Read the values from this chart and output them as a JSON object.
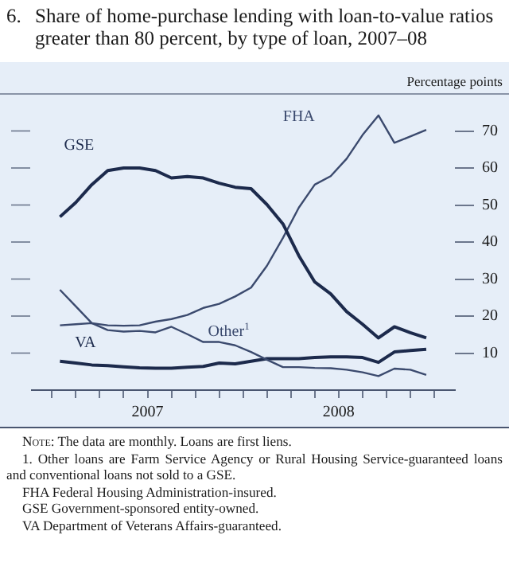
{
  "chart_data": {
    "type": "line",
    "title": "6.\tShare of home-purchase lending with loan-to-value ratios greater than 80 percent, by type of loan, 2007–08",
    "ylabel": "Percentage points",
    "x": [
      "2007-01",
      "2007-02",
      "2007-03",
      "2007-04",
      "2007-05",
      "2007-06",
      "2007-07",
      "2007-08",
      "2007-09",
      "2007-10",
      "2007-11",
      "2007-12",
      "2008-01",
      "2008-02",
      "2008-03",
      "2008-04",
      "2008-05",
      "2008-06",
      "2008-07",
      "2008-08",
      "2008-09",
      "2008-10",
      "2008-11",
      "2008-12"
    ],
    "series": [
      {
        "name": "GSE",
        "color": "#1c2a4c",
        "values": [
          46.8,
          50.7,
          55.5,
          59.3,
          60,
          60,
          59.3,
          57.3,
          57.7,
          57.3,
          55.9,
          54.8,
          54.4,
          50.1,
          44.9,
          36.3,
          29.2,
          26,
          21.2,
          17.8,
          14.1,
          17.1,
          15.5,
          14.1
        ]
      },
      {
        "name": "FHA",
        "color": "#3b4a6e",
        "values": [
          17.5,
          17.8,
          18.1,
          17.5,
          17.4,
          17.5,
          18.5,
          19.2,
          20.3,
          22.2,
          23.3,
          25.3,
          27.7,
          33.6,
          41.1,
          49.3,
          55.5,
          57.8,
          62.5,
          68.9,
          74.2,
          66.8,
          68.5,
          70.3
        ]
      },
      {
        "name": "Other$^{1}$",
        "color": "#3b4a6e",
        "values": [
          27.1,
          22.6,
          18.1,
          16.2,
          15.8,
          16,
          15.6,
          17.1,
          15.1,
          13,
          13,
          12.1,
          10.3,
          8.2,
          6.2,
          6.2,
          6,
          5.9,
          5.5,
          4.8,
          3.8,
          5.8,
          5.5,
          4.1
        ]
      },
      {
        "name": "VA",
        "color": "#1c2a4c",
        "values": [
          7.8,
          7.3,
          6.8,
          6.6,
          6.3,
          6,
          5.9,
          5.9,
          6.2,
          6.4,
          7.3,
          7.1,
          7.8,
          8.5,
          8.5,
          8.5,
          8.8,
          9,
          9,
          8.8,
          7.5,
          10.3,
          10.7,
          11
        ]
      }
    ],
    "xlim": [
      "2006-11-08",
      "2009-01-25"
    ],
    "xticks": [
      {
        "value": "2006-12-16",
        "label": null
      },
      {
        "value": "2007-02-01",
        "label": null
      },
      {
        "value": "2007-03-16",
        "label": null
      },
      {
        "value": "2007-05-01",
        "label": null
      },
      {
        "value": "2007-06-16",
        "label": "2007"
      },
      {
        "value": "2007-08-01",
        "label": null
      },
      {
        "value": "2007-09-16",
        "label": null
      },
      {
        "value": "2007-11-01",
        "label": null
      },
      {
        "value": "2007-12-16",
        "label": null
      },
      {
        "value": "2008-02-01",
        "label": null
      },
      {
        "value": "2008-03-16",
        "label": null
      },
      {
        "value": "2008-05-01",
        "label": null
      },
      {
        "value": "2008-06-16",
        "label": "2008"
      },
      {
        "value": "2008-08-01",
        "label": null
      },
      {
        "value": "2008-09-16",
        "label": null
      },
      {
        "value": "2008-11-01",
        "label": null
      },
      {
        "value": "2008-12-16",
        "label": null
      }
    ],
    "ylim": [
      0,
      80
    ],
    "yticks": [
      10,
      20,
      30,
      40,
      50,
      60,
      70
    ],
    "line_style": "solid",
    "marker": "none",
    "annotations": [
      "Note: The data are monthly. Loans are first liens.",
      "1. Other loans are Farm Service Agency or Rural Housing Service-guaranteed loans and conventional loans not sold to a GSE.",
      "FHA  Federal Housing Administration-insured.",
      "GSE  Government-sponsored entity-owned.",
      "VA  Department of Veterans Affairs-guaranteed."
    ]
  }
}
